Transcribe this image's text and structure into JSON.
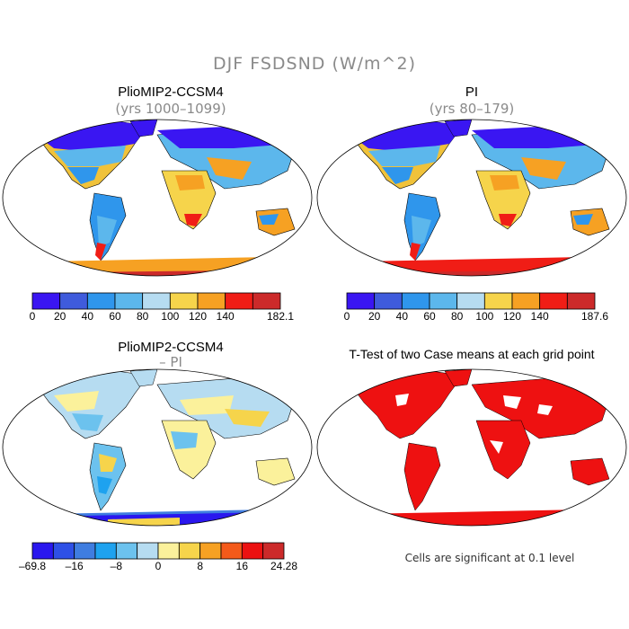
{
  "figure": {
    "title": "DJF FSDSND (W/m^2)"
  },
  "panels": [
    {
      "title": "PlioMIP2-CCSM4",
      "subtitle": "(yrs 1000–1099)",
      "colorbar": {
        "colors": [
          "#3a16f2",
          "#3f5bdc",
          "#2f96ec",
          "#5cb7ec",
          "#b6dcf1",
          "#f6d44b",
          "#f6a123",
          "#f01d16",
          "#cc2a2a"
        ],
        "ticks": [
          "0",
          "20",
          "40",
          "60",
          "80",
          "100",
          "120",
          "140",
          "182.1"
        ]
      }
    },
    {
      "title": "PI",
      "subtitle": "(yrs 80–179)",
      "colorbar": {
        "colors": [
          "#3a16f2",
          "#3f5bdc",
          "#2f96ec",
          "#5cb7ec",
          "#b6dcf1",
          "#f6d44b",
          "#f6a123",
          "#f01d16",
          "#cc2a2a"
        ],
        "ticks": [
          "0",
          "20",
          "40",
          "60",
          "80",
          "100",
          "120",
          "140",
          "187.6"
        ]
      }
    },
    {
      "title": "PlioMIP2-CCSM4",
      "subtitle": "– PI",
      "colorbar": {
        "colors": [
          "#2a17ee",
          "#2e50e6",
          "#3f7de0",
          "#1ea2ef",
          "#6cc2ee",
          "#b6dcf1",
          "#fbf19b",
          "#f6d44b",
          "#f6a123",
          "#f45a1a",
          "#ec1111",
          "#cc2a2a"
        ],
        "ticks": [
          "–69.8",
          "–16",
          "–8",
          "0",
          "8",
          "16",
          "24.28"
        ]
      }
    },
    {
      "title": "T-Test of two Case means at each grid point",
      "note": "Cells are significant at 0.1 level",
      "color": "#ee1111"
    }
  ]
}
